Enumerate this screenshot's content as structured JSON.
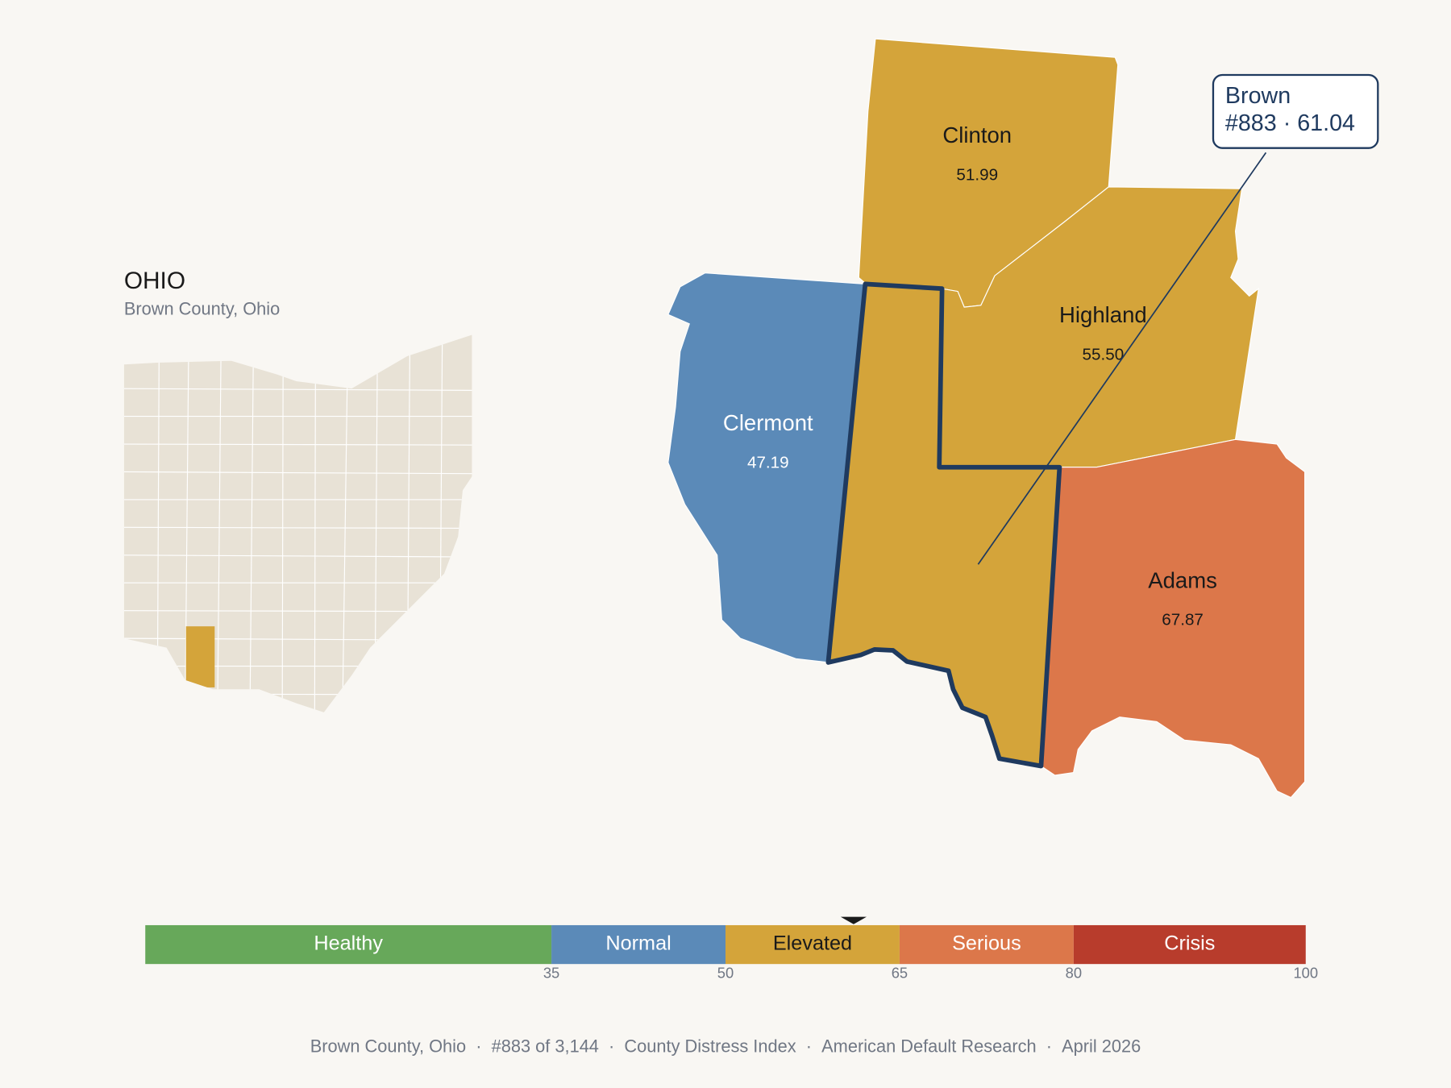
{
  "header": {
    "title": "OHIO",
    "subtitle": "Brown County, Ohio"
  },
  "highlight": {
    "name": "Brown",
    "rank": "#883",
    "score": 61.04,
    "color": "#d4a43a",
    "outline": "#1f3a5f"
  },
  "counties": [
    {
      "name": "Clinton",
      "value": "51.99",
      "color": "#d4a43a",
      "text_color": "#1a1a1a"
    },
    {
      "name": "Highland",
      "value": "55.50",
      "color": "#d4a43a",
      "text_color": "#1a1a1a"
    },
    {
      "name": "Clermont",
      "value": "47.19",
      "color": "#5b8ab8",
      "text_color": "#ffffff"
    },
    {
      "name": "Adams",
      "value": "67.87",
      "color": "#dc774a",
      "text_color": "#1a1a1a"
    }
  ],
  "scale": {
    "range": [
      0,
      100
    ],
    "ticks": [
      35,
      50,
      65,
      80,
      100
    ],
    "bands": [
      {
        "name": "Healthy",
        "color": "#67a85a",
        "text_color": "#ffffff"
      },
      {
        "name": "Normal",
        "color": "#5b8ab8",
        "text_color": "#ffffff"
      },
      {
        "name": "Elevated",
        "color": "#d4a43a",
        "text_color": "#1a1a1a"
      },
      {
        "name": "Serious",
        "color": "#dc774a",
        "text_color": "#ffffff"
      },
      {
        "name": "Crisis",
        "color": "#b83c2c",
        "text_color": "#ffffff"
      }
    ]
  },
  "footer": {
    "items": [
      "Brown County, Ohio",
      "#883 of 3,144",
      "County Distress Index",
      "American Default Research",
      "April 2026"
    ],
    "separator": "·"
  }
}
